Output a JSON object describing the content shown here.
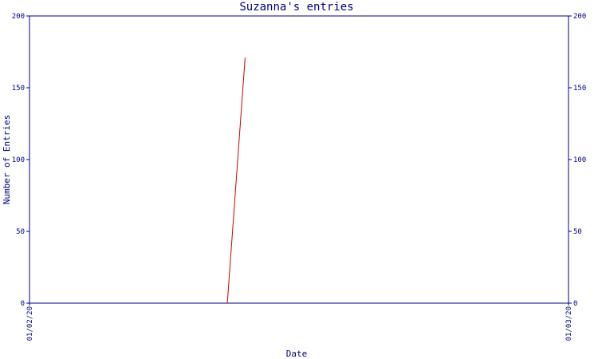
{
  "chart_data": {
    "type": "line",
    "title": "Suzanna's entries",
    "xlabel": "Date",
    "ylabel": "Number of Entries",
    "x_ticks": [
      "01/02/20",
      "01/03/20"
    ],
    "ylim": [
      0,
      200
    ],
    "y_ticks": [
      "0",
      "50",
      "100",
      "150",
      "200"
    ],
    "series": [
      {
        "color": "#cc0000",
        "points": [
          {
            "x": 0.367,
            "y": 0
          },
          {
            "x": 0.4,
            "y": 171
          }
        ]
      }
    ],
    "colors": {
      "axis": "#000080",
      "line": "#cc0000"
    }
  }
}
